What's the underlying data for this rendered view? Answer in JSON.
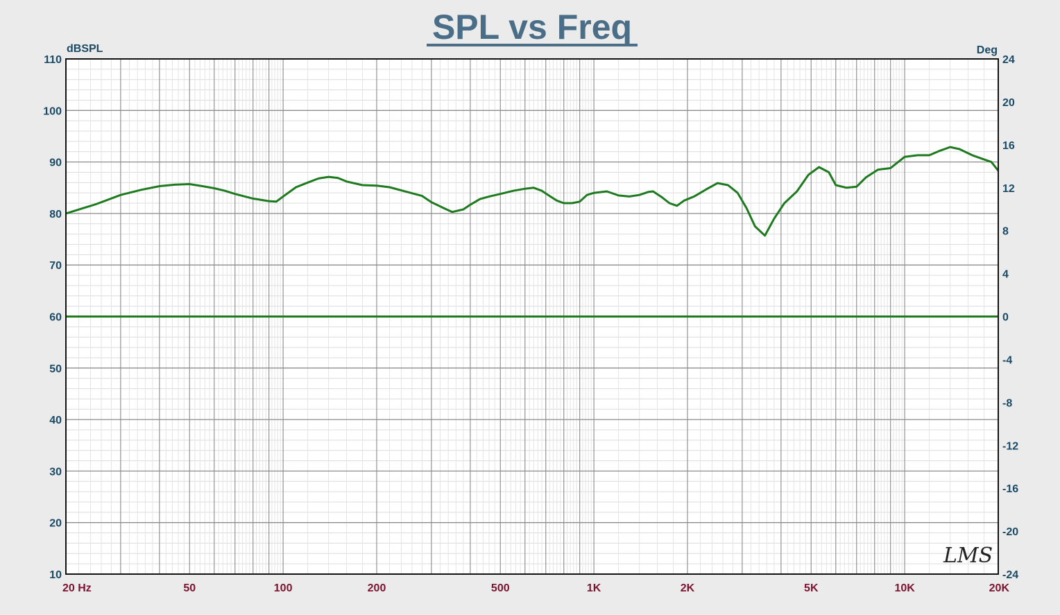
{
  "chart_data": {
    "type": "line",
    "title": "SPL vs Freq",
    "ylabel_left": "dBSPL",
    "ylabel_right": "Deg",
    "x_scale": "log",
    "xlim": [
      20,
      20000
    ],
    "ylim_left": [
      10,
      110
    ],
    "ylim_right": [
      -24,
      24
    ],
    "grid": true,
    "watermark": "LMS",
    "x_ticks": [
      {
        "value": 20,
        "label": "20  Hz"
      },
      {
        "value": 50,
        "label": "50"
      },
      {
        "value": 100,
        "label": "100"
      },
      {
        "value": 200,
        "label": "200"
      },
      {
        "value": 500,
        "label": "500"
      },
      {
        "value": 1000,
        "label": "1K"
      },
      {
        "value": 2000,
        "label": "2K"
      },
      {
        "value": 5000,
        "label": "5K"
      },
      {
        "value": 10000,
        "label": "10K"
      },
      {
        "value": 20000,
        "label": "20K"
      }
    ],
    "y_ticks_left": [
      {
        "value": 110,
        "label": "110"
      },
      {
        "value": 100,
        "label": "100"
      },
      {
        "value": 90,
        "label": "90"
      },
      {
        "value": 80,
        "label": "80"
      },
      {
        "value": 70,
        "label": "70"
      },
      {
        "value": 60,
        "label": "60"
      },
      {
        "value": 50,
        "label": "50"
      },
      {
        "value": 40,
        "label": "40"
      },
      {
        "value": 30,
        "label": "30"
      },
      {
        "value": 20,
        "label": "20"
      },
      {
        "value": 10,
        "label": "10"
      }
    ],
    "y_ticks_right": [
      {
        "value": 24,
        "label": "24"
      },
      {
        "value": 20,
        "label": "20"
      },
      {
        "value": 16,
        "label": "16"
      },
      {
        "value": 12,
        "label": "12"
      },
      {
        "value": 8,
        "label": "8"
      },
      {
        "value": 4,
        "label": "4"
      },
      {
        "value": 0,
        "label": "0"
      },
      {
        "value": -4,
        "label": "-4"
      },
      {
        "value": -8,
        "label": "-8"
      },
      {
        "value": -12,
        "label": "-12"
      },
      {
        "value": -16,
        "label": "-16"
      },
      {
        "value": -20,
        "label": "-20"
      },
      {
        "value": -24,
        "label": "-24"
      }
    ],
    "series": [
      {
        "axis": "left",
        "color": "#1e7a1e",
        "points": [
          [
            20,
            80.0
          ],
          [
            25,
            81.8
          ],
          [
            30,
            83.6
          ],
          [
            35,
            84.6
          ],
          [
            40,
            85.3
          ],
          [
            45,
            85.6
          ],
          [
            50,
            85.7
          ],
          [
            55,
            85.3
          ],
          [
            60,
            84.9
          ],
          [
            65,
            84.4
          ],
          [
            70,
            83.8
          ],
          [
            80,
            82.9
          ],
          [
            90,
            82.4
          ],
          [
            95,
            82.3
          ],
          [
            100,
            83.3
          ],
          [
            110,
            85.1
          ],
          [
            120,
            86.0
          ],
          [
            130,
            86.8
          ],
          [
            140,
            87.1
          ],
          [
            150,
            86.9
          ],
          [
            160,
            86.2
          ],
          [
            180,
            85.5
          ],
          [
            200,
            85.4
          ],
          [
            220,
            85.1
          ],
          [
            250,
            84.2
          ],
          [
            280,
            83.4
          ],
          [
            300,
            82.2
          ],
          [
            330,
            81.0
          ],
          [
            350,
            80.3
          ],
          [
            380,
            80.8
          ],
          [
            400,
            81.7
          ],
          [
            430,
            82.8
          ],
          [
            460,
            83.3
          ],
          [
            500,
            83.8
          ],
          [
            550,
            84.4
          ],
          [
            600,
            84.8
          ],
          [
            640,
            85.0
          ],
          [
            680,
            84.4
          ],
          [
            720,
            83.4
          ],
          [
            760,
            82.5
          ],
          [
            800,
            82.0
          ],
          [
            850,
            82.0
          ],
          [
            900,
            82.3
          ],
          [
            950,
            83.6
          ],
          [
            1000,
            84.0
          ],
          [
            1100,
            84.3
          ],
          [
            1200,
            83.5
          ],
          [
            1300,
            83.3
          ],
          [
            1400,
            83.6
          ],
          [
            1500,
            84.2
          ],
          [
            1550,
            84.3
          ],
          [
            1650,
            83.2
          ],
          [
            1750,
            82.0
          ],
          [
            1850,
            81.5
          ],
          [
            1950,
            82.5
          ],
          [
            2100,
            83.3
          ],
          [
            2300,
            84.7
          ],
          [
            2500,
            85.9
          ],
          [
            2700,
            85.5
          ],
          [
            2900,
            84.0
          ],
          [
            3100,
            81.0
          ],
          [
            3300,
            77.5
          ],
          [
            3550,
            75.7
          ],
          [
            3800,
            79.0
          ],
          [
            4100,
            82.0
          ],
          [
            4500,
            84.3
          ],
          [
            4900,
            87.5
          ],
          [
            5300,
            89.0
          ],
          [
            5700,
            88.0
          ],
          [
            6000,
            85.5
          ],
          [
            6500,
            85.0
          ],
          [
            7000,
            85.2
          ],
          [
            7500,
            87.0
          ],
          [
            8200,
            88.5
          ],
          [
            9000,
            88.8
          ],
          [
            10000,
            91.0
          ],
          [
            11000,
            91.3
          ],
          [
            12000,
            91.3
          ],
          [
            13000,
            92.2
          ],
          [
            14000,
            92.9
          ],
          [
            15000,
            92.5
          ],
          [
            16500,
            91.3
          ],
          [
            18000,
            90.5
          ],
          [
            19000,
            90.0
          ],
          [
            20000,
            88.3
          ]
        ]
      },
      {
        "axis": "right",
        "color": "#1e7a1e",
        "points": [
          [
            20,
            0
          ],
          [
            20000,
            0
          ]
        ]
      }
    ]
  }
}
